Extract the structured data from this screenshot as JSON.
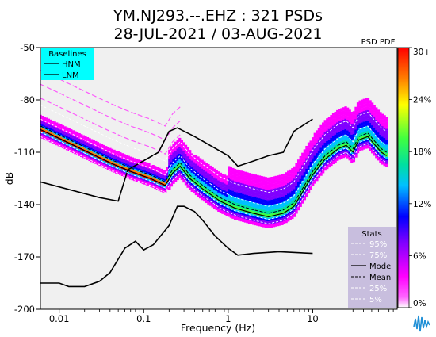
{
  "title_line1": "YM.NJ293.--.EHZ : 321 PSDs",
  "title_line2": "28-JUL-2021 / 03-AUG-2021",
  "colorbar_title": "PSD PDF",
  "colorbar_ticks": [
    "30+",
    "24%",
    "18%",
    "12%",
    "6%",
    "0%"
  ],
  "baselines": {
    "title": "Baselines",
    "items": [
      "HNM",
      "LNM"
    ]
  },
  "stats": {
    "title": "Stats",
    "items": [
      "95%",
      "75%",
      "Mode",
      "Mean",
      "25%",
      "5%"
    ]
  },
  "colors": {
    "plot_bg": "#f0f0f0",
    "legend_bg": "#00ffff",
    "stats_bg": "#c8bede",
    "logo": "#1f8fd6"
  },
  "icons": {
    "logo": "seismogram-logo-icon"
  },
  "chart_data": {
    "type": "line",
    "xlabel": "Frequency (Hz)",
    "ylabel": "dB",
    "xscale": "log",
    "xlim": [
      0.006,
      100
    ],
    "ylim": [
      -200,
      -50
    ],
    "xticks": [
      "0.01",
      "0.1",
      "1",
      "10"
    ],
    "yticks": [
      "-50",
      "-80",
      "-110",
      "-140",
      "-170",
      "-200"
    ],
    "grid": false,
    "legend": "top-left",
    "series": [
      {
        "name": "HNM",
        "color": "#000000",
        "points": [
          [
            0.006,
            -127
          ],
          [
            0.03,
            -136
          ],
          [
            0.05,
            -138
          ],
          [
            0.065,
            -120
          ],
          [
            0.15,
            -110
          ],
          [
            0.2,
            -98
          ],
          [
            0.25,
            -96
          ],
          [
            0.4,
            -101
          ],
          [
            1.0,
            -112
          ],
          [
            1.3,
            -118
          ],
          [
            2.0,
            -115
          ],
          [
            3.0,
            -112
          ],
          [
            4.5,
            -110
          ],
          [
            6.0,
            -98
          ],
          [
            10,
            -91
          ]
        ]
      },
      {
        "name": "LNM",
        "color": "#000000",
        "points": [
          [
            0.006,
            -185
          ],
          [
            0.01,
            -185
          ],
          [
            0.013,
            -187
          ],
          [
            0.02,
            -187
          ],
          [
            0.03,
            -184
          ],
          [
            0.04,
            -179
          ],
          [
            0.06,
            -165
          ],
          [
            0.08,
            -161
          ],
          [
            0.1,
            -166
          ],
          [
            0.13,
            -163
          ],
          [
            0.2,
            -152
          ],
          [
            0.25,
            -141
          ],
          [
            0.3,
            -141
          ],
          [
            0.4,
            -144
          ],
          [
            0.5,
            -149
          ],
          [
            0.7,
            -158
          ],
          [
            1.0,
            -165
          ],
          [
            1.3,
            -169
          ],
          [
            2.0,
            -168
          ],
          [
            4.0,
            -167
          ],
          [
            10,
            -168
          ]
        ]
      },
      {
        "name": "Mode",
        "points": [
          [
            0.006,
            -97
          ],
          [
            0.01,
            -102
          ],
          [
            0.02,
            -109
          ],
          [
            0.04,
            -116
          ],
          [
            0.07,
            -121
          ],
          [
            0.12,
            -125
          ],
          [
            0.18,
            -129
          ],
          [
            0.22,
            -122
          ],
          [
            0.27,
            -118
          ],
          [
            0.35,
            -125
          ],
          [
            0.5,
            -131
          ],
          [
            0.8,
            -138
          ],
          [
            1.2,
            -142
          ],
          [
            2.0,
            -145
          ],
          [
            3.0,
            -147
          ],
          [
            4.5,
            -145
          ],
          [
            6.0,
            -141
          ],
          [
            8.0,
            -131
          ],
          [
            10,
            -123
          ],
          [
            14,
            -114
          ],
          [
            20,
            -108
          ],
          [
            25,
            -106
          ],
          [
            30,
            -110
          ],
          [
            35,
            -103
          ],
          [
            45,
            -101
          ],
          [
            55,
            -106
          ],
          [
            65,
            -110
          ],
          [
            75,
            -112
          ]
        ]
      }
    ],
    "pdf_colormap": [
      "#ffffff",
      "#ff00ff",
      "#8000ff",
      "#0000ff",
      "#00c0ff",
      "#00e0a0",
      "#40ff40",
      "#ffff00",
      "#ff8000",
      "#ff0000"
    ]
  }
}
